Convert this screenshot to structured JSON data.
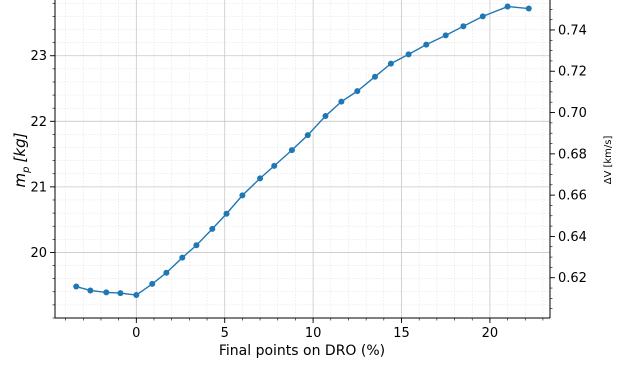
{
  "chart_data": {
    "type": "line",
    "title": "",
    "xlabel": "Final points on DRO (%)",
    "ylabel_left": "m_p [kg]",
    "ylabel_left_main": "m",
    "ylabel_left_sub": "p",
    "ylabel_left_unit": "[kg]",
    "ylabel_right": "ΔV [km/s]",
    "xlim": [
      -4.6,
      23.4
    ],
    "ylim_left": [
      19.0,
      23.85
    ],
    "ylim_right": [
      0.6005,
      0.7545
    ],
    "x_ticks": [
      0,
      5,
      10,
      15,
      20
    ],
    "x_tick_labels": [
      "0",
      "5",
      "10",
      "15",
      "20"
    ],
    "y_left_ticks": [
      20,
      21,
      22,
      23
    ],
    "y_left_tick_labels": [
      "20",
      "21",
      "22",
      "23"
    ],
    "y_right_ticks": [
      0.62,
      0.64,
      0.66,
      0.68,
      0.7,
      0.72,
      0.74
    ],
    "y_right_tick_labels": [
      "0.62",
      "0.64",
      "0.66",
      "0.68",
      "0.70",
      "0.72",
      "0.74"
    ],
    "grid": true,
    "minor_grid": true,
    "legend": "none",
    "series_color": "#1f77b4",
    "series": [
      {
        "x": [
          -3.4,
          -2.6,
          -1.7,
          -0.9,
          0.0,
          0.9,
          1.7,
          2.6,
          3.4,
          4.3,
          5.1,
          6.0,
          7.0,
          7.8,
          8.8,
          9.7,
          10.7,
          11.6,
          12.5,
          13.5,
          14.4,
          15.4,
          16.4,
          17.5,
          18.5,
          19.6,
          21.0,
          22.2
        ],
        "y": [
          19.48,
          19.42,
          19.39,
          19.38,
          19.35,
          19.52,
          19.69,
          19.92,
          20.11,
          20.36,
          20.59,
          20.87,
          21.13,
          21.32,
          21.56,
          21.79,
          22.08,
          22.3,
          22.46,
          22.68,
          22.88,
          23.02,
          23.17,
          23.31,
          23.45,
          23.6,
          23.75,
          23.72
        ]
      }
    ]
  }
}
